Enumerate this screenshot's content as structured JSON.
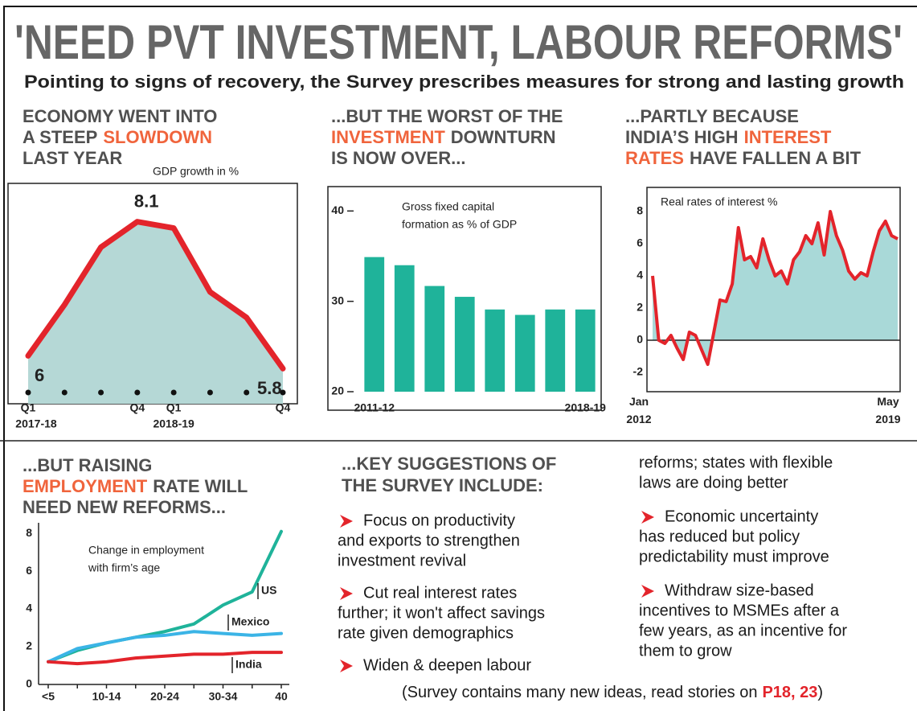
{
  "headline": "'NEED PVT INVESTMENT, LABOUR REFORMS'",
  "subtitle": "Pointing to signs of recovery, the Survey prescribes measures for strong and lasting growth",
  "chart_data": [
    {
      "type": "line",
      "title_lines": [
        [
          "ECONOMY WENT INTO"
        ],
        [
          "A STEEP",
          {
            "text": "SLOWDOWN",
            "color": "#f0643c"
          }
        ],
        [
          "LAST YEAR"
        ]
      ],
      "y_label": "GDP growth in %",
      "categories": [
        "Q1",
        null,
        null,
        "Q4",
        "Q1",
        null,
        null,
        "Q4"
      ],
      "groups": [
        "2017-18",
        "2018-19"
      ],
      "values": [
        6,
        6.8,
        7.7,
        8.1,
        8,
        7,
        6.6,
        5.8
      ],
      "value_labels": [
        "6",
        null,
        null,
        "8.1",
        null,
        null,
        null,
        "5.8"
      ],
      "color": "#e3242b",
      "fill": "#b5d8d6",
      "ylim": [
        5.4,
        8.7
      ]
    },
    {
      "type": "bar",
      "title_lines": [
        [
          "...BUT THE WORST OF THE"
        ],
        [
          {
            "text": "INVESTMENT",
            "color": "#f0643c"
          },
          "DOWNTURN"
        ],
        [
          "IS NOW OVER..."
        ]
      ],
      "annotation": [
        "Gross fixed capital",
        "formation as % of GDP"
      ],
      "categories": [
        "2011-12",
        null,
        null,
        null,
        null,
        null,
        null,
        "2018-19"
      ],
      "values": [
        34.9,
        34.0,
        31.7,
        30.5,
        29.1,
        28.5,
        29.1,
        29.1
      ],
      "color": "#1fb39a",
      "ylim": [
        20,
        42.7
      ],
      "yticks": [
        20,
        30,
        40
      ]
    },
    {
      "type": "area",
      "title_lines": [
        [
          "...PARTLY BECAUSE"
        ],
        [
          "INDIA’S HIGH",
          {
            "text": "INTEREST",
            "color": "#f0643c"
          }
        ],
        [
          {
            "text": "RATES",
            "color": "#f0643c"
          },
          "HAVE FALLEN A BIT"
        ]
      ],
      "annotation": [
        "Real rates of interest %"
      ],
      "categories": [
        "Jan 2012",
        null,
        null,
        null,
        null,
        null,
        null,
        null,
        null,
        null,
        null,
        null,
        null,
        null,
        null,
        null,
        null,
        null,
        null,
        null,
        null,
        null,
        null,
        null,
        null,
        null,
        null,
        null,
        null,
        null,
        null,
        null,
        null,
        null,
        null,
        null,
        null,
        null,
        null,
        null,
        "May 2019"
      ],
      "values": [
        4.0,
        0.0,
        -0.2,
        0.3,
        -0.5,
        -1.2,
        0.5,
        0.3,
        -0.6,
        -1.5,
        0.5,
        2.5,
        2.4,
        3.5,
        7.0,
        5.0,
        5.2,
        4.5,
        6.3,
        5.0,
        4.0,
        4.3,
        3.5,
        5.0,
        5.5,
        6.5,
        6.0,
        7.3,
        5.3,
        8.0,
        6.5,
        5.6,
        4.3,
        3.8,
        4.2,
        4.0,
        5.5,
        6.8,
        7.4,
        6.5,
        6.3
      ],
      "color": "#e3242b",
      "fill": "#a9d9d8",
      "ylim": [
        -3.2,
        9.5
      ],
      "yticks": [
        -2,
        0,
        2,
        4,
        6,
        8
      ]
    },
    {
      "type": "line",
      "title_lines": [
        [
          "...BUT RAISING"
        ],
        [
          {
            "text": "EMPLOYMENT",
            "color": "#f0643c"
          },
          "RATE WILL"
        ],
        [
          "NEED NEW REFORMS..."
        ]
      ],
      "annotation": [
        "Change in employment",
        "with firm’s age"
      ],
      "categories": [
        "<5",
        null,
        "10-14",
        null,
        "20-24",
        null,
        "30-34",
        null,
        "40"
      ],
      "series": [
        {
          "name": "US",
          "color": "#1fb39a",
          "values": [
            1.2,
            1.8,
            2.2,
            2.5,
            2.8,
            3.2,
            4.2,
            4.9,
            8.1
          ]
        },
        {
          "name": "Mexico",
          "color": "#3bb4e6",
          "values": [
            1.2,
            1.9,
            2.2,
            2.5,
            2.6,
            2.8,
            2.7,
            2.6,
            2.7
          ]
        },
        {
          "name": "India",
          "color": "#e3242b",
          "values": [
            1.2,
            1.1,
            1.2,
            1.4,
            1.5,
            1.6,
            1.6,
            1.7,
            1.7
          ]
        }
      ],
      "ylim": [
        0,
        8.6
      ],
      "yticks": [
        0,
        2,
        4,
        6,
        8
      ]
    }
  ],
  "suggestions": {
    "heading": [
      "...KEY SUGGESTIONS OF",
      "THE SURVEY INCLUDE:"
    ],
    "items": [
      [
        "Focus on productivity",
        "and exports to strengthen",
        "investment revival"
      ],
      [
        "Cut real interest rates",
        "further; it won't affect savings",
        "rate given demographics"
      ],
      [
        "Widen & deepen labour",
        "reforms; states with flexible",
        "laws are doing better"
      ],
      [
        "Economic uncertainty",
        "has reduced but policy",
        "predictability must improve"
      ],
      [
        "Withdraw size-based",
        "incentives to MSMEs after a",
        "few years, as an incentive for",
        "them to grow"
      ]
    ]
  },
  "footer": {
    "text": "(Survey contains many new ideas, read stories on",
    "pages": "P18, 23",
    "close": ")"
  }
}
